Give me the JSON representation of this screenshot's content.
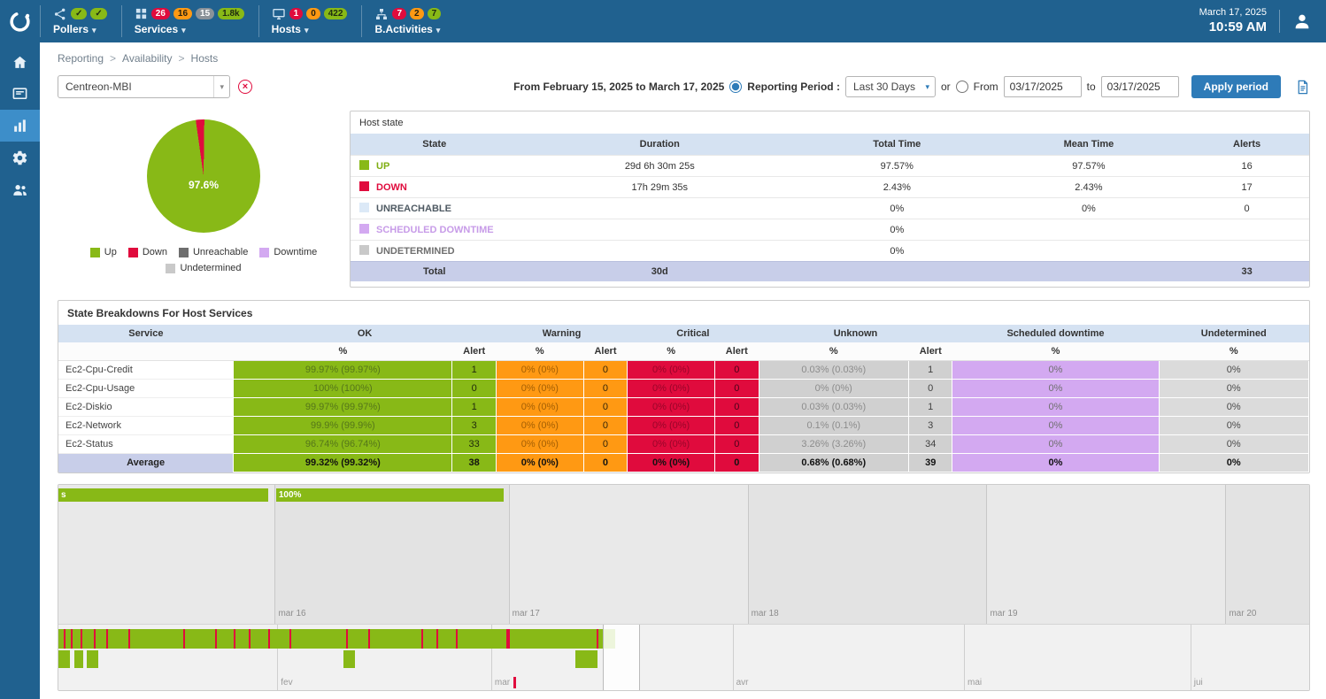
{
  "palette": {
    "badge": {
      "red": {
        "bg": "#E00B3D",
        "fg": "#FFFFFF"
      },
      "orange": {
        "bg": "#FF9913",
        "fg": "#28210F"
      },
      "gray": {
        "bg": "#8A9299",
        "fg": "#FFFFFF"
      },
      "green": {
        "bg": "#88B917",
        "fg": "#1F2A10"
      }
    },
    "header_bg": "#20618F",
    "sidebar_active_bg": "#3D8EC9",
    "accent_blue": "#2E7BB8"
  },
  "topbar": {
    "date": "March 17, 2025",
    "time": "10:59 AM",
    "menus": [
      {
        "id": "pollers",
        "label": "Pollers",
        "icon": "pollers-icon",
        "badges": [
          {
            "text": "✓",
            "color": "green"
          },
          {
            "text": "✓",
            "color": "green"
          }
        ]
      },
      {
        "id": "services",
        "label": "Services",
        "icon": "services-icon",
        "badges": [
          {
            "text": "26",
            "color": "red"
          },
          {
            "text": "16",
            "color": "orange"
          },
          {
            "text": "15",
            "color": "gray"
          },
          {
            "text": "1.8k",
            "color": "green"
          }
        ]
      },
      {
        "id": "hosts",
        "label": "Hosts",
        "icon": "hosts-icon",
        "badges": [
          {
            "text": "1",
            "color": "red"
          },
          {
            "text": "0",
            "color": "orange"
          },
          {
            "text": "422",
            "color": "green"
          }
        ]
      },
      {
        "id": "bactivities",
        "label": "B.Activities",
        "icon": "ba-icon",
        "badges": [
          {
            "text": "7",
            "color": "red"
          },
          {
            "text": "2",
            "color": "orange"
          },
          {
            "text": "7",
            "color": "green"
          }
        ]
      }
    ]
  },
  "sidebar": {
    "items": [
      {
        "id": "home",
        "icon": "home-icon",
        "active": false
      },
      {
        "id": "monitoring",
        "icon": "monitoring-icon",
        "active": false
      },
      {
        "id": "reporting",
        "icon": "reporting-icon",
        "active": true
      },
      {
        "id": "configuration",
        "icon": "gear-icon",
        "active": false
      },
      {
        "id": "administration",
        "icon": "people-icon",
        "active": false
      }
    ]
  },
  "breadcrumb": {
    "separator": ">",
    "items": [
      "Reporting",
      "Availability",
      "Hosts"
    ]
  },
  "filters": {
    "host_select_value": "Centreon-MBI",
    "period_text": "From February 15, 2025 to March 17, 2025",
    "reporting_period_label": "Reporting Period :",
    "reporting_period_value": "Last 30 Days",
    "or_label": "or",
    "from_label": "From",
    "from_value": "03/17/2025",
    "to_label": "to",
    "to_value": "03/17/2025",
    "apply_label": "Apply period"
  },
  "pie": {
    "center_label": "97.6%",
    "start_angle_deg": -8,
    "slices": [
      {
        "label": "Down",
        "value": 2.43,
        "color": "#E00B3D"
      },
      {
        "label": "Up",
        "value": 97.57,
        "color": "#88B917"
      }
    ],
    "legend": [
      {
        "label": "Up",
        "color": "#88B917"
      },
      {
        "label": "Down",
        "color": "#E00B3D"
      },
      {
        "label": "Unreachable",
        "color": "#6E6E6E"
      },
      {
        "label": "Downtime",
        "color": "#D3A9F1"
      },
      {
        "label": "Undetermined",
        "color": "#C9C9C9"
      }
    ]
  },
  "host_state": {
    "title": "Host state",
    "columns": [
      "State",
      "Duration",
      "Total Time",
      "Mean Time",
      "Alerts"
    ],
    "col_widths": [
      "17.5%",
      "29.5%",
      "20%",
      "20%",
      "13%"
    ],
    "rows": [
      {
        "state": "UP",
        "swatch": "#88B917",
        "label_color": "#7FAE12",
        "duration": "29d 6h 30m 25s",
        "total_time": "97.57%",
        "mean_time": "97.57%",
        "alerts": "16"
      },
      {
        "state": "DOWN",
        "swatch": "#E00B3D",
        "label_color": "#E00B3D",
        "duration": "17h 29m 35s",
        "total_time": "2.43%",
        "mean_time": "2.43%",
        "alerts": "17"
      },
      {
        "state": "UNREACHABLE",
        "swatch": "#DCE9F7",
        "label_color": "#4F5A63",
        "duration": "",
        "total_time": "0%",
        "mean_time": "0%",
        "alerts": "0"
      },
      {
        "state": "SCHEDULED DOWNTIME",
        "swatch": "#D3A9F1",
        "label_color": "#C79BE8",
        "duration": "",
        "total_time": "0%",
        "mean_time": "",
        "alerts": ""
      },
      {
        "state": "UNDETERMINED",
        "swatch": "#C9C9C9",
        "label_color": "#6F6F6F",
        "duration": "",
        "total_time": "0%",
        "mean_time": "",
        "alerts": ""
      }
    ],
    "total": {
      "label": "Total",
      "duration": "30d",
      "total_time": "",
      "mean_time": "",
      "alerts": "33"
    }
  },
  "breakdown": {
    "title": "State Breakdowns For Host Services",
    "col_widths": [
      "14%",
      "17.5%",
      "3.5%",
      "7%",
      "3.5%",
      "7%",
      "3.5%",
      "12%",
      "3.5%",
      "16.5%",
      "12%"
    ],
    "header_groups": [
      {
        "label": "Service",
        "span": 1
      },
      {
        "label": "OK",
        "span": 2
      },
      {
        "label": "Warning",
        "span": 2
      },
      {
        "label": "Critical",
        "span": 2
      },
      {
        "label": "Unknown",
        "span": 2
      },
      {
        "label": "Scheduled downtime",
        "span": 1
      },
      {
        "label": "Undetermined",
        "span": 1
      }
    ],
    "sub_headers": [
      "",
      "%",
      "Alert",
      "%",
      "Alert",
      "%",
      "Alert",
      "%",
      "Alert",
      "%",
      "%"
    ],
    "cell_styles": {
      "ok": {
        "bg": "#88B917",
        "pct_fg": "#55761A",
        "alert_fg": "#20290D"
      },
      "warning": {
        "bg": "#FF9913",
        "pct_fg": "#A35F04",
        "alert_fg": "#33250A"
      },
      "critical": {
        "bg": "#E00B3D",
        "pct_fg": "#99052A",
        "alert_fg": "#47031A"
      },
      "unknown": {
        "bg": "#D0D0D0",
        "pct_fg": "#8C8C8C",
        "alert_fg": "#3F3F3F"
      },
      "sched": {
        "bg": "#D3A9F1",
        "pct_fg": "#6F6F6F",
        "alert_fg": "#3F3F3F"
      },
      "undet": {
        "bg": "#DBDBDB",
        "pct_fg": "#4A4A4A",
        "alert_fg": "#3F3F3F"
      }
    },
    "rows": [
      {
        "service": "Ec2-Cpu-Credit",
        "ok_pct": "99.97% (99.97%)",
        "ok_alert": "1",
        "warn_pct": "0% (0%)",
        "warn_alert": "0",
        "crit_pct": "0% (0%)",
        "crit_alert": "0",
        "unk_pct": "0.03% (0.03%)",
        "unk_alert": "1",
        "sched_pct": "0%",
        "undet_pct": "0%"
      },
      {
        "service": "Ec2-Cpu-Usage",
        "ok_pct": "100% (100%)",
        "ok_alert": "0",
        "warn_pct": "0% (0%)",
        "warn_alert": "0",
        "crit_pct": "0% (0%)",
        "crit_alert": "0",
        "unk_pct": "0% (0%)",
        "unk_alert": "0",
        "sched_pct": "0%",
        "undet_pct": "0%"
      },
      {
        "service": "Ec2-Diskio",
        "ok_pct": "99.97% (99.97%)",
        "ok_alert": "1",
        "warn_pct": "0% (0%)",
        "warn_alert": "0",
        "crit_pct": "0% (0%)",
        "crit_alert": "0",
        "unk_pct": "0.03% (0.03%)",
        "unk_alert": "1",
        "sched_pct": "0%",
        "undet_pct": "0%"
      },
      {
        "service": "Ec2-Network",
        "ok_pct": "99.9% (99.9%)",
        "ok_alert": "3",
        "warn_pct": "0% (0%)",
        "warn_alert": "0",
        "crit_pct": "0% (0%)",
        "crit_alert": "0",
        "unk_pct": "0.1% (0.1%)",
        "unk_alert": "3",
        "sched_pct": "0%",
        "undet_pct": "0%"
      },
      {
        "service": "Ec2-Status",
        "ok_pct": "96.74% (96.74%)",
        "ok_alert": "33",
        "warn_pct": "0% (0%)",
        "warn_alert": "0",
        "crit_pct": "0% (0%)",
        "crit_alert": "0",
        "unk_pct": "3.26% (3.26%)",
        "unk_alert": "34",
        "sched_pct": "0%",
        "undet_pct": "0%"
      }
    ],
    "average": {
      "service": "Average",
      "ok_pct": "99.32% (99.32%)",
      "ok_alert": "38",
      "warn_pct": "0% (0%)",
      "warn_alert": "0",
      "crit_pct": "0% (0%)",
      "crit_alert": "0",
      "unk_pct": "0.68% (0.68%)",
      "unk_alert": "39",
      "sched_pct": "0%",
      "undet_pct": "0%"
    }
  },
  "timeline": {
    "detail": {
      "bar_color": "#88B917",
      "days": [
        {
          "label": "mar 16",
          "x": 0.173
        },
        {
          "label": "mar 17",
          "x": 0.36
        },
        {
          "label": "mar 18",
          "x": 0.551
        },
        {
          "label": "mar 19",
          "x": 0.742
        },
        {
          "label": "mar 20",
          "x": 0.933
        }
      ],
      "bars": [
        {
          "start": 0.0,
          "end": 0.168,
          "label": "s"
        },
        {
          "start": 0.174,
          "end": 0.356,
          "label": "100%"
        }
      ]
    },
    "overview": {
      "band_color": "#88B917",
      "tick_color": "#E00B3D",
      "months": [
        {
          "label": "fev",
          "x": 0.175
        },
        {
          "label": "mar",
          "x": 0.346
        },
        {
          "label": "avr",
          "x": 0.539
        },
        {
          "label": "mai",
          "x": 0.724
        },
        {
          "label": "jui",
          "x": 0.905
        }
      ],
      "up_band": {
        "start": 0.0,
        "end": 0.445
      },
      "down_ticks": [
        {
          "x": 0.004
        },
        {
          "x": 0.01
        },
        {
          "x": 0.018
        },
        {
          "x": 0.028
        },
        {
          "x": 0.038
        },
        {
          "x": 0.056
        },
        {
          "x": 0.1
        },
        {
          "x": 0.125
        },
        {
          "x": 0.14
        },
        {
          "x": 0.152
        },
        {
          "x": 0.168
        },
        {
          "x": 0.185
        },
        {
          "x": 0.23
        },
        {
          "x": 0.248
        },
        {
          "x": 0.29
        },
        {
          "x": 0.302
        },
        {
          "x": 0.318
        },
        {
          "x": 0.358,
          "w": 4
        },
        {
          "x": 0.43
        }
      ],
      "partial_blocks": [
        {
          "start": 0.0,
          "end": 0.009
        },
        {
          "start": 0.013,
          "end": 0.02
        },
        {
          "start": 0.023,
          "end": 0.032
        },
        {
          "start": 0.228,
          "end": 0.237
        },
        {
          "start": 0.413,
          "end": 0.431
        }
      ],
      "brush": {
        "start": 0.435,
        "end": 0.465
      },
      "marker": {
        "x": 0.364,
        "color": "#E00B3D"
      }
    }
  }
}
